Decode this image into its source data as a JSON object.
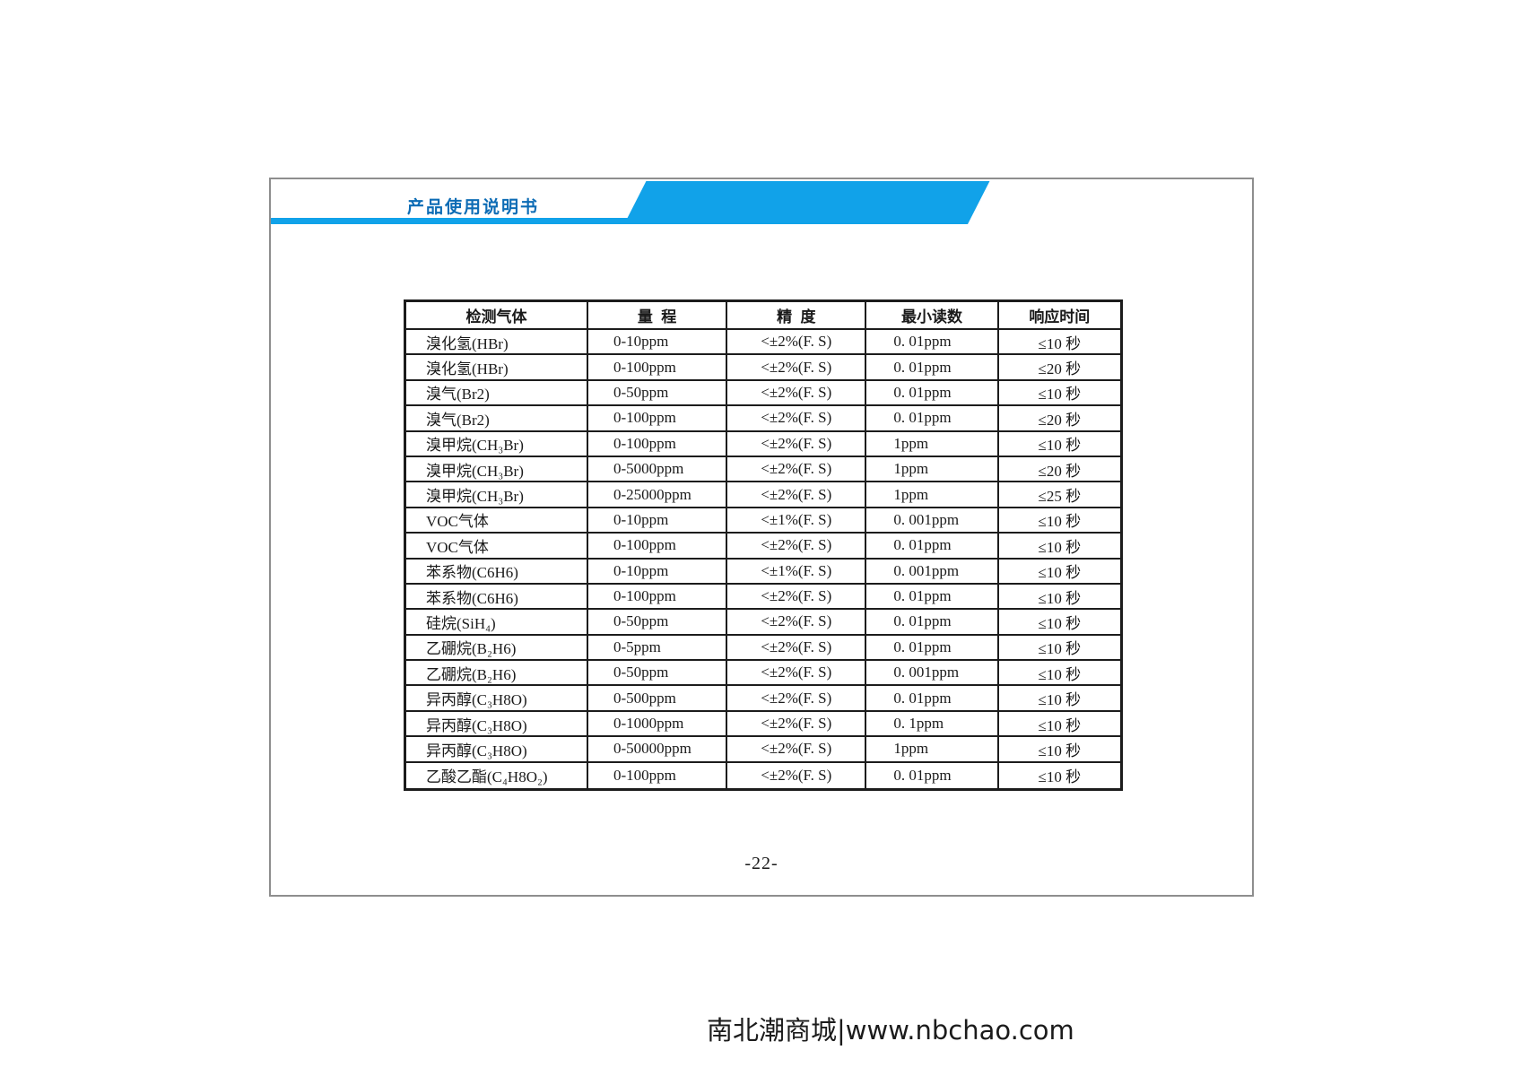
{
  "header": {
    "title": "产品使用说明书"
  },
  "colors": {
    "accent_blue": "#11a2e9",
    "title_blue": "#0d6cb5",
    "table_border": "#1c1c1c"
  },
  "table": {
    "columns": [
      "检测气体",
      "量  程",
      "精  度",
      "最小读数",
      "响应时间"
    ],
    "rows": [
      {
        "gas": "溴化氢(HBr)",
        "range": "0-10ppm",
        "accuracy": "<±2%(F. S)",
        "min_reading": "0. 01ppm",
        "response": "≤10 秒"
      },
      {
        "gas": "溴化氢(HBr)",
        "range": "0-100ppm",
        "accuracy": "<±2%(F. S)",
        "min_reading": "0. 01ppm",
        "response": "≤20 秒"
      },
      {
        "gas": "溴气(Br2)",
        "range": "0-50ppm",
        "accuracy": "<±2%(F. S)",
        "min_reading": "0. 01ppm",
        "response": "≤10 秒"
      },
      {
        "gas": "溴气(Br2)",
        "range": "0-100ppm",
        "accuracy": "<±2%(F. S)",
        "min_reading": "0. 01ppm",
        "response": "≤20 秒"
      },
      {
        "gas": "溴甲烷(CH₃Br)",
        "range": "0-100ppm",
        "accuracy": "<±2%(F. S)",
        "min_reading": "1ppm",
        "response": "≤10 秒"
      },
      {
        "gas": "溴甲烷(CH₃Br)",
        "range": "0-5000ppm",
        "accuracy": "<±2%(F. S)",
        "min_reading": "1ppm",
        "response": "≤20 秒"
      },
      {
        "gas": "溴甲烷(CH₃Br)",
        "range": "0-25000ppm",
        "accuracy": "<±2%(F. S)",
        "min_reading": "1ppm",
        "response": "≤25 秒"
      },
      {
        "gas": "VOC气体",
        "range": "0-10ppm",
        "accuracy": "<±1%(F. S)",
        "min_reading": "0. 001ppm",
        "response": "≤10 秒"
      },
      {
        "gas": "VOC气体",
        "range": "0-100ppm",
        "accuracy": "<±2%(F. S)",
        "min_reading": "0. 01ppm",
        "response": "≤10 秒"
      },
      {
        "gas": "苯系物(C6H6)",
        "range": "0-10ppm",
        "accuracy": "<±1%(F. S)",
        "min_reading": "0. 001ppm",
        "response": "≤10 秒"
      },
      {
        "gas": "苯系物(C6H6)",
        "range": "0-100ppm",
        "accuracy": "<±2%(F. S)",
        "min_reading": "0. 01ppm",
        "response": "≤10 秒"
      },
      {
        "gas": "硅烷(SiH₄)",
        "range": "0-50ppm",
        "accuracy": "<±2%(F. S)",
        "min_reading": "0. 01ppm",
        "response": "≤10 秒"
      },
      {
        "gas": "乙硼烷(B₂H6)",
        "range": "0-5ppm",
        "accuracy": "<±2%(F. S)",
        "min_reading": "0. 01ppm",
        "response": "≤10 秒"
      },
      {
        "gas": "乙硼烷(B₂H6)",
        "range": "0-50ppm",
        "accuracy": "<±2%(F. S)",
        "min_reading": "0. 001ppm",
        "response": "≤10 秒"
      },
      {
        "gas": "异丙醇(C₃H8O)",
        "range": "0-500ppm",
        "accuracy": "<±2%(F. S)",
        "min_reading": "0. 01ppm",
        "response": "≤10 秒"
      },
      {
        "gas": "异丙醇(C₃H8O)",
        "range": "0-1000ppm",
        "accuracy": "<±2%(F. S)",
        "min_reading": "0. 1ppm",
        "response": "≤10 秒"
      },
      {
        "gas": "异丙醇(C₃H8O)",
        "range": "0-50000ppm",
        "accuracy": "<±2%(F. S)",
        "min_reading": "1ppm",
        "response": "≤10 秒"
      },
      {
        "gas": "乙酸乙酯(C₄H8O₂)",
        "range": "0-100ppm",
        "accuracy": "<±2%(F. S)",
        "min_reading": "0. 01ppm",
        "response": "≤10 秒"
      }
    ]
  },
  "footer": {
    "page_number": "-22-"
  },
  "watermark": {
    "text": "南北潮商城|www.nbchao.com"
  }
}
